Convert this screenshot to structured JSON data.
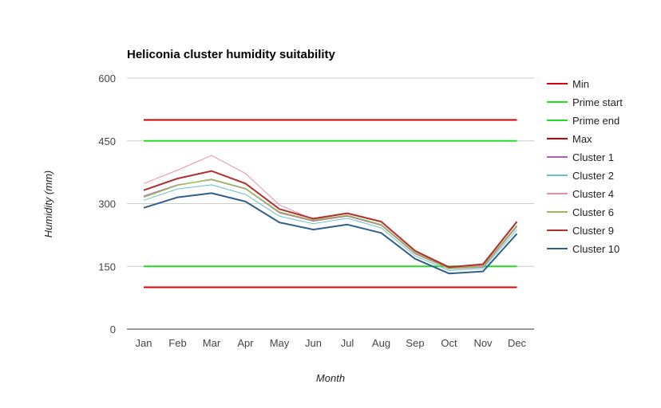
{
  "chart_data": {
    "type": "line",
    "title": "Heliconia cluster humidity suitability",
    "xlabel": "Month",
    "ylabel": "Humidity (mm)",
    "categories": [
      "Jan",
      "Feb",
      "Mar",
      "Apr",
      "May",
      "Jun",
      "Jul",
      "Aug",
      "Sep",
      "Oct",
      "Nov",
      "Dec"
    ],
    "ylim": [
      0,
      600
    ],
    "yticks": [
      0,
      150,
      300,
      450,
      600
    ],
    "grid": true,
    "legend_position": "right",
    "series": [
      {
        "name": "Min",
        "color": "#dd0000",
        "width": 2,
        "values": [
          100,
          100,
          100,
          100,
          100,
          100,
          100,
          100,
          100,
          100,
          100,
          100
        ]
      },
      {
        "name": "Prime start",
        "color": "#22dd22",
        "width": 2,
        "values": [
          150,
          150,
          150,
          150,
          150,
          150,
          150,
          150,
          150,
          150,
          150,
          150
        ]
      },
      {
        "name": "Prime end",
        "color": "#22dd22",
        "width": 2,
        "values": [
          450,
          450,
          450,
          450,
          450,
          450,
          450,
          450,
          450,
          450,
          450,
          450
        ]
      },
      {
        "name": "Max",
        "color": "#cc0000",
        "width": 2,
        "values": [
          500,
          500,
          500,
          500,
          500,
          500,
          500,
          500,
          500,
          500,
          500,
          500
        ]
      },
      {
        "name": "Cluster 1",
        "color": "#b05fb0",
        "width": 1,
        "values": [
          318,
          345,
          357,
          335,
          278,
          258,
          270,
          248,
          180,
          144,
          148,
          245
        ]
      },
      {
        "name": "Cluster 2",
        "color": "#66c2c2",
        "width": 1,
        "values": [
          308,
          335,
          345,
          322,
          270,
          252,
          265,
          242,
          175,
          140,
          145,
          238
        ]
      },
      {
        "name": "Cluster 4",
        "color": "#e88fa8",
        "width": 1,
        "values": [
          348,
          380,
          415,
          372,
          297,
          262,
          272,
          250,
          183,
          147,
          152,
          255
        ]
      },
      {
        "name": "Cluster 6",
        "color": "#99bb55",
        "width": 1.5,
        "values": [
          315,
          344,
          358,
          336,
          280,
          260,
          272,
          250,
          182,
          145,
          150,
          248
        ]
      },
      {
        "name": "Cluster 9",
        "color": "#b03030",
        "width": 2,
        "values": [
          332,
          360,
          378,
          348,
          287,
          264,
          277,
          257,
          187,
          148,
          155,
          257
        ]
      },
      {
        "name": "Cluster 10",
        "color": "#2f5f8f",
        "width": 2,
        "values": [
          290,
          315,
          325,
          305,
          255,
          238,
          250,
          230,
          168,
          133,
          138,
          228
        ]
      }
    ]
  }
}
